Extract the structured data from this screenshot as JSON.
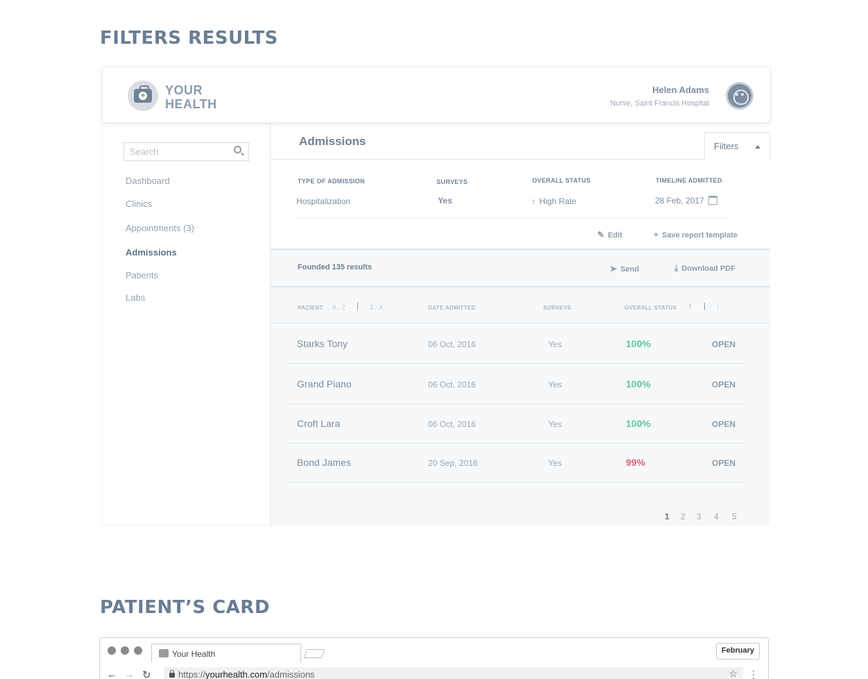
{
  "sections": {
    "filters_title": "FILTERS RESULTS",
    "card_title": "PATIENT’S CARD"
  },
  "header": {
    "logo_line1": "YOUR",
    "logo_line2": "HEALTH",
    "user_name": "Helen Adams",
    "user_role": "Nurse, Saint Francis Hospital"
  },
  "sidebar": {
    "search_placeholder": "Search",
    "items": [
      {
        "label": "Dashboard"
      },
      {
        "label": "Clinics"
      },
      {
        "label": "Appointments (3)"
      },
      {
        "label": "Admissions",
        "active": true
      },
      {
        "label": "Patients"
      },
      {
        "label": "Labs"
      }
    ]
  },
  "main": {
    "title": "Admissions",
    "filters_label": "Filters",
    "filters": {
      "type_label": "TYPE OF ADMISSION",
      "type_value": "Hospitalization",
      "surveys_label": "SURVEYS",
      "surveys_value": "Yes",
      "status_label": "OVERALL STATUS",
      "status_value": "High Rate",
      "timeline_label": "TIMELINE ADMITTED",
      "timeline_value": "28 Feb, 2017"
    },
    "edit_label": "Edit",
    "save_label": "Save report template",
    "results_count": "Founded 135 results",
    "send_label": "Send",
    "pdf_label": "Download PDF",
    "columns": {
      "patient": "PACIENT",
      "sort_az": "A - Z",
      "sort_sep": "|",
      "sort_za": "Z - A",
      "date": "DATE ADMITTED",
      "surveys": "SURVEYS",
      "status": "OVERALL STATUS",
      "sort_up": "↑",
      "sort_sep2": "|",
      "sort_down": "↓"
    },
    "rows": [
      {
        "name": "Starks Tony",
        "date": "06 Oct, 2016",
        "surveys": "Yes",
        "status": "100%",
        "state": "OPEN"
      },
      {
        "name": "Grand Piano",
        "date": "06 Oct, 2016",
        "surveys": "Yes",
        "status": "100%",
        "state": "OPEN"
      },
      {
        "name": "Croft Lara",
        "date": "06 Oct, 2016",
        "surveys": "Yes",
        "status": "100%",
        "state": "OPEN"
      },
      {
        "name": "Bond James",
        "date": "20 Sep, 2016",
        "surveys": "Yes",
        "status": "99%",
        "state": "OPEN"
      }
    ],
    "pages": [
      "1",
      "2",
      "3",
      "4",
      "5"
    ]
  },
  "colors": {
    "good": "#5fc4a2",
    "bad": "#d9667b"
  },
  "browser": {
    "tab_title": "Your Health",
    "month_button": "February",
    "url_scheme": "https://",
    "url_host": "yourhealth.com",
    "url_path": "/admissions"
  }
}
